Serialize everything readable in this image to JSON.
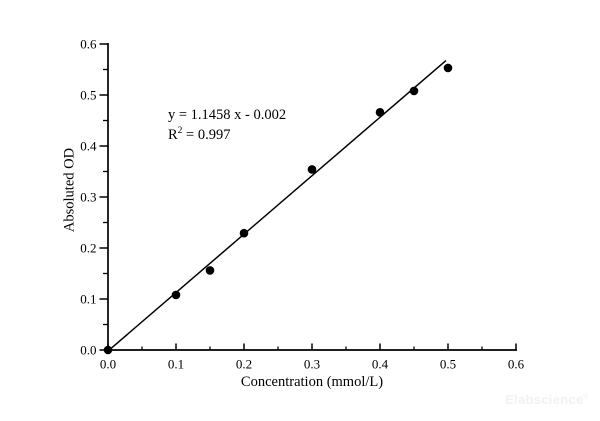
{
  "figure": {
    "watermark_text": "Elabscience",
    "watermark_reg": "®",
    "watermark_color": "#f2f2f2",
    "background_color": "#ffffff"
  },
  "chart_data": {
    "type": "scatter",
    "title": "",
    "xlabel": "Concentration (mmol/L)",
    "ylabel": "Absoluted OD",
    "xlim": [
      0.0,
      0.6
    ],
    "ylim": [
      0.0,
      0.6
    ],
    "grid": false,
    "legend": "none",
    "x_major_ticks": [
      0.0,
      0.1,
      0.2,
      0.3,
      0.4,
      0.5,
      0.6
    ],
    "x_tick_labels": [
      "0.0",
      "0.1",
      "0.2",
      "0.3",
      "0.4",
      "0.5",
      "0.6"
    ],
    "x_minor_ticks": [
      0.05,
      0.15,
      0.25,
      0.35,
      0.45,
      0.55
    ],
    "y_major_ticks": [
      0.0,
      0.1,
      0.2,
      0.3,
      0.4,
      0.5,
      0.6
    ],
    "y_tick_labels": [
      "0.0",
      "0.1",
      "0.2",
      "0.3",
      "0.4",
      "0.5",
      "0.6"
    ],
    "y_minor_ticks": [
      0.05,
      0.15,
      0.25,
      0.35,
      0.45,
      0.55
    ],
    "points": [
      [
        0.0,
        0.0
      ],
      [
        0.1,
        0.108
      ],
      [
        0.15,
        0.156
      ],
      [
        0.2,
        0.229
      ],
      [
        0.3,
        0.354
      ],
      [
        0.4,
        0.466
      ],
      [
        0.45,
        0.508
      ],
      [
        0.5,
        0.553
      ]
    ],
    "fit_line": {
      "slope": 1.1458,
      "intercept": -0.002,
      "x_start": 0.0018,
      "x_end": 0.497
    },
    "annotation": {
      "equation": "y = 1.1458 x - 0.002",
      "r2_base": "R",
      "r2_sup": "2",
      "r2_rest": " = 0.997"
    },
    "axis_color": "#000000",
    "point_color": "#000000",
    "line_color": "#000000",
    "text_color": "#000000"
  }
}
